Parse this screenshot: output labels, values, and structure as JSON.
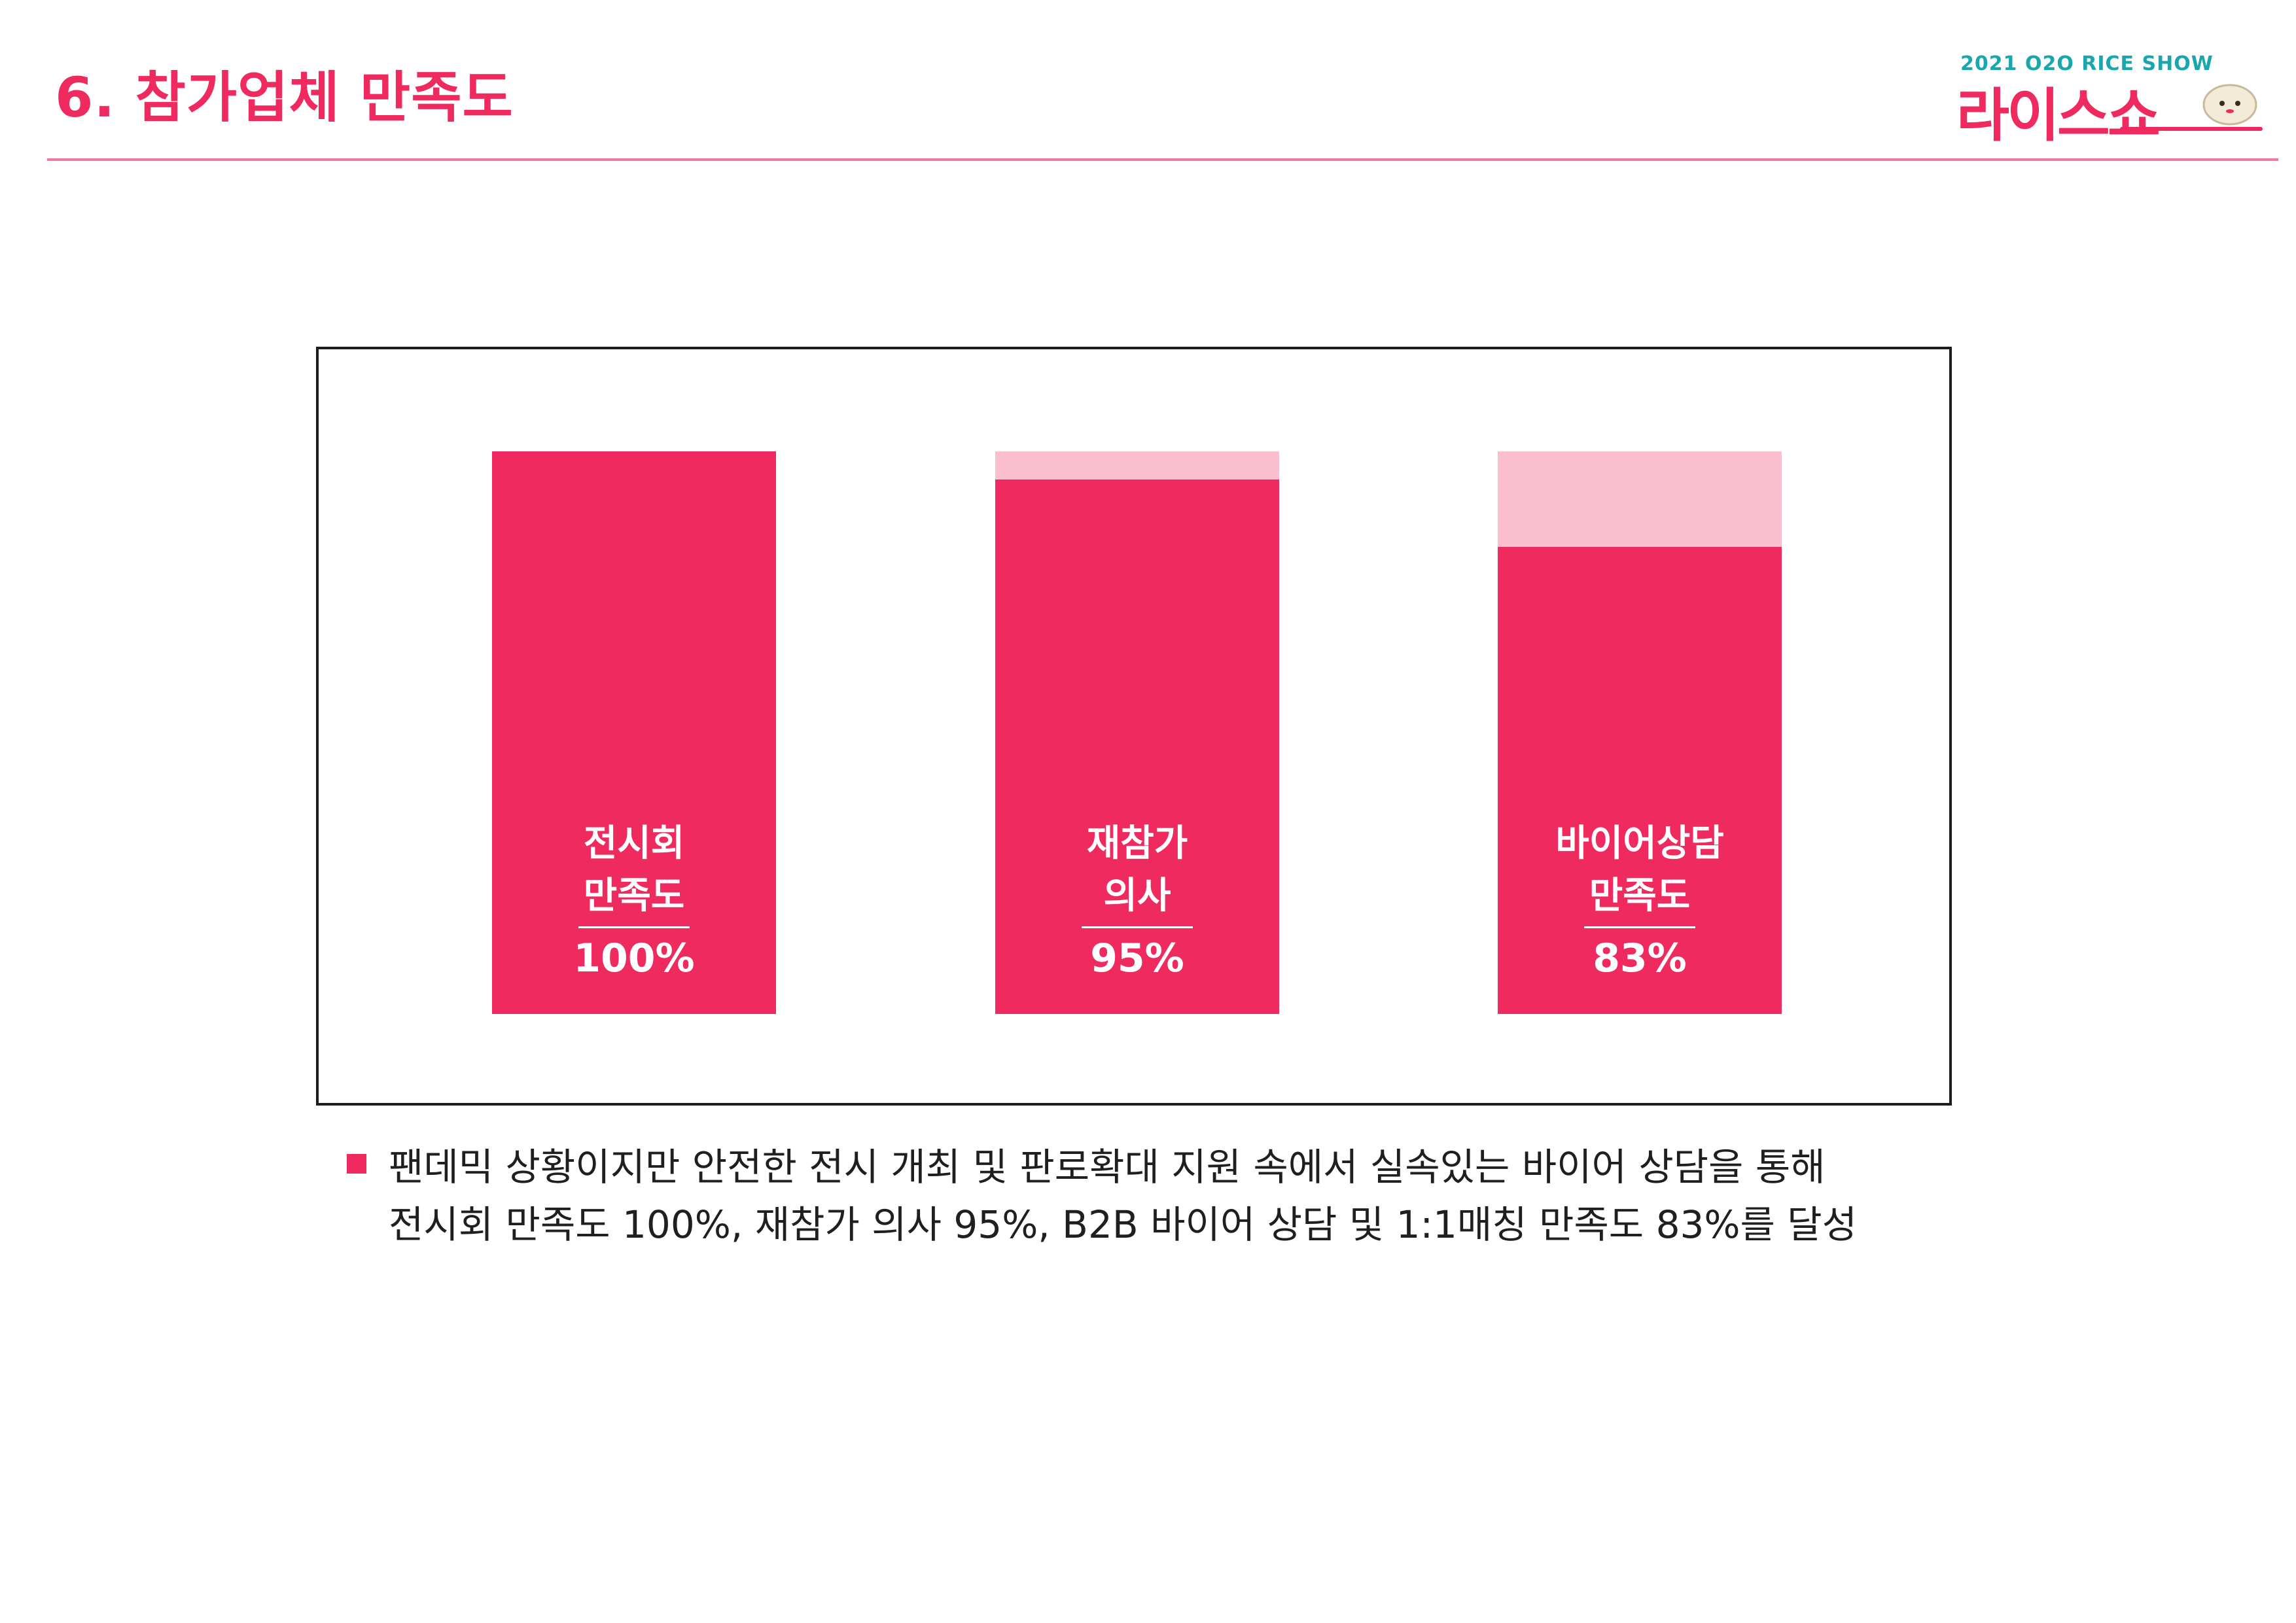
{
  "header": {
    "title": "6. 참가업체 만족도",
    "logo_sub": "2021 O2O RICE SHOW",
    "logo_main": "라이스쇼"
  },
  "chart_data": {
    "type": "bar",
    "categories": [
      "전시회 만족도",
      "재참가 의사",
      "바이어상담 만족도"
    ],
    "label_lines": [
      [
        "전시회",
        "만족도"
      ],
      [
        "재참가",
        "의사"
      ],
      [
        "바이어상담",
        "만족도"
      ]
    ],
    "values": [
      100,
      95,
      83
    ],
    "value_labels": [
      "100%",
      "95%",
      "83%"
    ],
    "ylim": [
      0,
      100
    ],
    "colors": {
      "fill": "#ee2a5e",
      "remainder": "#fbbfd0"
    }
  },
  "note": {
    "lines": [
      "팬데믹 상황이지만 안전한 전시 개최 및 판로확대 지원 속에서 실속있는 바이어 상담을 통해",
      "전시회 만족도 100%, 재참가 의사 95%, B2B 바이어 상담 및 1:1매칭 만족도 83%를 달성"
    ]
  }
}
